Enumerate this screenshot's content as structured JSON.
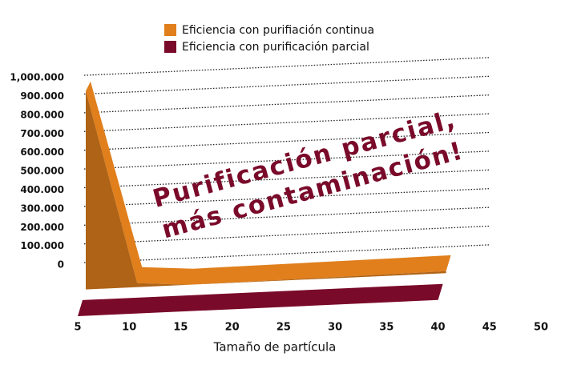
{
  "chart_data": {
    "type": "area3d",
    "x_label": "Tamaño de partícula",
    "annotation": [
      "Purificación parcial,",
      "más contaminación!"
    ],
    "xlim": [
      5,
      50
    ],
    "xticks": [
      5,
      10,
      15,
      20,
      25,
      30,
      35,
      40,
      45,
      50
    ],
    "ylim": [
      0,
      1000000
    ],
    "yticks": [
      0,
      {
        "value": 100000,
        "label": "100.000"
      },
      {
        "value": 200000,
        "label": "200.000"
      },
      {
        "value": 300000,
        "label": "300.000"
      },
      {
        "value": 400000,
        "label": "400.000"
      },
      {
        "value": 500000,
        "label": "500.000"
      },
      {
        "value": 600000,
        "label": "600.000"
      },
      {
        "value": 700000,
        "label": "700.000"
      },
      {
        "value": 800000,
        "label": "800.000"
      },
      {
        "value": 900000,
        "label": "900.000"
      },
      {
        "value": 1000000,
        "label": "1,000.000"
      }
    ],
    "grid": true,
    "series": [
      {
        "name": "Eficiencia con purifiación continua",
        "color": "#e07f1c",
        "x": [
          5,
          10,
          15,
          40
        ],
        "values": [
          1000000,
          20000,
          0,
          10000
        ]
      },
      {
        "name": "Eficiencia con purificación parcial",
        "color": "#7a0a2a",
        "x": [
          5,
          40
        ],
        "values": [
          0,
          0
        ]
      }
    ]
  }
}
